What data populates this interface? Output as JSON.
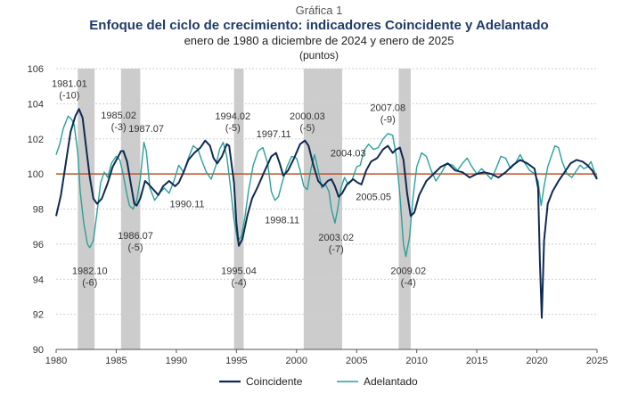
{
  "header": {
    "label": "Gráfica 1",
    "title": "Enfoque del ciclo de crecimiento: indicadores Coincidente y Adelantado",
    "subtitle": "enero de 1980 a diciembre de 2024 y enero de 2025",
    "unit": "(puntos)"
  },
  "colors": {
    "coincidente": "#0f2a52",
    "adelantado": "#2aa19a",
    "reference": "#c0502a",
    "recession": "#cccccc",
    "grid": "#cfcfcf"
  },
  "chart_data": {
    "type": "line",
    "xlim": [
      1980,
      2025
    ],
    "ylim": [
      90,
      106
    ],
    "x_ticks": [
      1980,
      1985,
      1990,
      1995,
      2000,
      2005,
      2010,
      2015,
      2020,
      2025
    ],
    "y_ticks": [
      90,
      92,
      94,
      96,
      98,
      100,
      102,
      104,
      106
    ],
    "x_tick_labels": [
      "1980",
      "1985",
      "1990",
      "1995",
      "2000",
      "2005",
      "2010",
      "2015",
      "2020",
      "2025"
    ],
    "y_tick_labels": [
      "90",
      "92",
      "94",
      "96",
      "98",
      "100",
      "102",
      "104",
      "106"
    ],
    "grid": "horizontal dotted",
    "reference_line": 100,
    "legend_position": "bottom",
    "shaded_periods": [
      [
        1981.8,
        1983.2
      ],
      [
        1985.4,
        1987.0
      ],
      [
        1994.8,
        1995.6
      ],
      [
        2000.6,
        2003.8
      ],
      [
        2008.5,
        2009.5
      ]
    ],
    "series": [
      {
        "name": "Coincidente",
        "points": [
          [
            1980.0,
            97.6
          ],
          [
            1980.4,
            98.8
          ],
          [
            1980.8,
            100.6
          ],
          [
            1981.2,
            102.4
          ],
          [
            1981.6,
            103.3
          ],
          [
            1981.9,
            103.7
          ],
          [
            1982.2,
            103.2
          ],
          [
            1982.5,
            101.5
          ],
          [
            1982.8,
            99.8
          ],
          [
            1983.1,
            98.6
          ],
          [
            1983.4,
            98.3
          ],
          [
            1983.8,
            98.6
          ],
          [
            1984.3,
            99.5
          ],
          [
            1984.7,
            100.4
          ],
          [
            1985.1,
            100.9
          ],
          [
            1985.4,
            101.3
          ],
          [
            1985.6,
            101.3
          ],
          [
            1985.9,
            100.7
          ],
          [
            1986.2,
            99.5
          ],
          [
            1986.5,
            98.3
          ],
          [
            1986.7,
            98.2
          ],
          [
            1987.0,
            98.6
          ],
          [
            1987.4,
            99.6
          ],
          [
            1987.7,
            99.4
          ],
          [
            1988.1,
            99.1
          ],
          [
            1988.5,
            98.8
          ],
          [
            1988.9,
            99.3
          ],
          [
            1989.4,
            99.6
          ],
          [
            1989.9,
            99.3
          ],
          [
            1990.2,
            99.5
          ],
          [
            1990.6,
            100.1
          ],
          [
            1991.0,
            100.8
          ],
          [
            1991.5,
            101.2
          ],
          [
            1992.0,
            101.5
          ],
          [
            1992.4,
            101.9
          ],
          [
            1992.8,
            101.6
          ],
          [
            1993.1,
            100.9
          ],
          [
            1993.4,
            100.6
          ],
          [
            1993.8,
            101.0
          ],
          [
            1994.2,
            101.7
          ],
          [
            1994.4,
            101.6
          ],
          [
            1994.8,
            99.5
          ],
          [
            1995.0,
            97.2
          ],
          [
            1995.2,
            95.9
          ],
          [
            1995.5,
            96.3
          ],
          [
            1995.9,
            97.6
          ],
          [
            1996.3,
            98.6
          ],
          [
            1996.8,
            99.3
          ],
          [
            1997.3,
            100.1
          ],
          [
            1997.9,
            101.0
          ],
          [
            1998.3,
            101.2
          ],
          [
            1998.6,
            100.6
          ],
          [
            1998.9,
            99.9
          ],
          [
            1999.3,
            100.2
          ],
          [
            1999.8,
            100.9
          ],
          [
            2000.3,
            101.7
          ],
          [
            2000.7,
            101.9
          ],
          [
            2001.0,
            101.6
          ],
          [
            2001.4,
            100.5
          ],
          [
            2001.8,
            99.6
          ],
          [
            2002.2,
            99.3
          ],
          [
            2002.6,
            99.6
          ],
          [
            2002.9,
            99.7
          ],
          [
            2003.2,
            99.3
          ],
          [
            2003.5,
            98.7
          ],
          [
            2003.8,
            98.9
          ],
          [
            2004.2,
            99.4
          ],
          [
            2004.7,
            99.7
          ],
          [
            2005.1,
            99.5
          ],
          [
            2005.4,
            99.4
          ],
          [
            2005.8,
            100.2
          ],
          [
            2006.2,
            100.7
          ],
          [
            2006.7,
            100.9
          ],
          [
            2007.2,
            101.4
          ],
          [
            2007.6,
            101.6
          ],
          [
            2008.0,
            101.2
          ],
          [
            2008.3,
            101.4
          ],
          [
            2008.6,
            101.5
          ],
          [
            2008.9,
            100.8
          ],
          [
            2009.2,
            98.9
          ],
          [
            2009.5,
            97.6
          ],
          [
            2009.8,
            97.8
          ],
          [
            2010.2,
            98.8
          ],
          [
            2010.8,
            99.6
          ],
          [
            2011.4,
            100.0
          ],
          [
            2012.0,
            100.4
          ],
          [
            2012.6,
            100.6
          ],
          [
            2013.2,
            100.2
          ],
          [
            2013.8,
            100.1
          ],
          [
            2014.4,
            99.8
          ],
          [
            2015.0,
            100.0
          ],
          [
            2015.6,
            100.1
          ],
          [
            2016.2,
            100.0
          ],
          [
            2016.8,
            99.8
          ],
          [
            2017.4,
            100.1
          ],
          [
            2018.0,
            100.5
          ],
          [
            2018.6,
            100.8
          ],
          [
            2019.2,
            100.6
          ],
          [
            2019.8,
            100.3
          ],
          [
            2020.1,
            99.2
          ],
          [
            2020.25,
            95.0
          ],
          [
            2020.4,
            91.8
          ],
          [
            2020.6,
            96.2
          ],
          [
            2020.9,
            98.3
          ],
          [
            2021.3,
            99.0
          ],
          [
            2021.8,
            99.6
          ],
          [
            2022.3,
            100.1
          ],
          [
            2022.8,
            100.6
          ],
          [
            2023.3,
            100.8
          ],
          [
            2023.8,
            100.7
          ],
          [
            2024.2,
            100.5
          ],
          [
            2024.6,
            100.2
          ],
          [
            2025.0,
            99.7
          ]
        ]
      },
      {
        "name": "Adelantado",
        "points": [
          [
            1980.0,
            101.1
          ],
          [
            1980.3,
            101.7
          ],
          [
            1980.6,
            102.6
          ],
          [
            1981.0,
            103.3
          ],
          [
            1981.3,
            103.1
          ],
          [
            1981.5,
            102.8
          ],
          [
            1981.8,
            101.2
          ],
          [
            1982.0,
            99.0
          ],
          [
            1982.3,
            97.2
          ],
          [
            1982.6,
            96.0
          ],
          [
            1982.8,
            95.8
          ],
          [
            1983.1,
            96.2
          ],
          [
            1983.4,
            97.8
          ],
          [
            1983.7,
            99.5
          ],
          [
            1984.0,
            100.1
          ],
          [
            1984.3,
            99.8
          ],
          [
            1984.6,
            100.6
          ],
          [
            1985.0,
            101.0
          ],
          [
            1985.3,
            100.8
          ],
          [
            1985.6,
            99.9
          ],
          [
            1985.9,
            98.8
          ],
          [
            1986.1,
            98.2
          ],
          [
            1986.4,
            98.0
          ],
          [
            1986.7,
            98.5
          ],
          [
            1987.0,
            99.7
          ],
          [
            1987.3,
            101.8
          ],
          [
            1987.5,
            101.3
          ],
          [
            1987.8,
            99.2
          ],
          [
            1988.2,
            98.5
          ],
          [
            1988.6,
            98.9
          ],
          [
            1989.0,
            99.2
          ],
          [
            1989.4,
            98.9
          ],
          [
            1989.8,
            99.6
          ],
          [
            1990.2,
            100.5
          ],
          [
            1990.6,
            100.1
          ],
          [
            1991.0,
            100.9
          ],
          [
            1991.4,
            101.6
          ],
          [
            1991.8,
            101.4
          ],
          [
            1992.1,
            100.8
          ],
          [
            1992.5,
            100.1
          ],
          [
            1992.9,
            99.7
          ],
          [
            1993.3,
            100.5
          ],
          [
            1993.6,
            101.4
          ],
          [
            1993.9,
            101.8
          ],
          [
            1994.2,
            101.0
          ],
          [
            1994.5,
            99.3
          ],
          [
            1994.8,
            97.4
          ],
          [
            1995.1,
            96.2
          ],
          [
            1995.4,
            96.4
          ],
          [
            1995.7,
            97.5
          ],
          [
            1996.0,
            99.0
          ],
          [
            1996.4,
            100.5
          ],
          [
            1996.8,
            101.3
          ],
          [
            1997.2,
            101.5
          ],
          [
            1997.6,
            100.6
          ],
          [
            1997.9,
            99.0
          ],
          [
            1998.2,
            98.5
          ],
          [
            1998.5,
            98.7
          ],
          [
            1998.8,
            99.5
          ],
          [
            1999.2,
            100.4
          ],
          [
            1999.6,
            101.0
          ],
          [
            2000.0,
            100.9
          ],
          [
            2000.3,
            100.2
          ],
          [
            2000.6,
            99.3
          ],
          [
            2000.9,
            99.1
          ],
          [
            2001.2,
            100.3
          ],
          [
            2001.5,
            101.1
          ],
          [
            2001.8,
            100.2
          ],
          [
            2002.1,
            99.2
          ],
          [
            2002.4,
            99.4
          ],
          [
            2002.7,
            99.0
          ],
          [
            2002.9,
            98.0
          ],
          [
            2003.2,
            97.2
          ],
          [
            2003.4,
            97.9
          ],
          [
            2003.7,
            99.2
          ],
          [
            2004.0,
            99.8
          ],
          [
            2004.3,
            99.4
          ],
          [
            2004.6,
            99.6
          ],
          [
            2005.0,
            100.4
          ],
          [
            2005.3,
            100.5
          ],
          [
            2005.6,
            101.3
          ],
          [
            2006.0,
            101.7
          ],
          [
            2006.4,
            101.4
          ],
          [
            2006.8,
            101.5
          ],
          [
            2007.2,
            102.0
          ],
          [
            2007.6,
            102.3
          ],
          [
            2008.0,
            102.2
          ],
          [
            2008.3,
            101.0
          ],
          [
            2008.6,
            98.8
          ],
          [
            2008.9,
            96.0
          ],
          [
            2009.1,
            95.3
          ],
          [
            2009.4,
            96.4
          ],
          [
            2009.7,
            98.7
          ],
          [
            2010.0,
            100.4
          ],
          [
            2010.4,
            101.2
          ],
          [
            2010.8,
            101.0
          ],
          [
            2011.2,
            100.2
          ],
          [
            2011.6,
            99.6
          ],
          [
            2012.0,
            100.0
          ],
          [
            2012.5,
            100.6
          ],
          [
            2013.0,
            100.5
          ],
          [
            2013.4,
            100.2
          ],
          [
            2013.8,
            100.6
          ],
          [
            2014.2,
            100.9
          ],
          [
            2014.6,
            100.4
          ],
          [
            2015.0,
            100.0
          ],
          [
            2015.4,
            100.3
          ],
          [
            2015.8,
            100.0
          ],
          [
            2016.2,
            99.7
          ],
          [
            2016.6,
            100.3
          ],
          [
            2017.0,
            101.0
          ],
          [
            2017.4,
            100.9
          ],
          [
            2017.8,
            100.3
          ],
          [
            2018.2,
            100.6
          ],
          [
            2018.6,
            101.1
          ],
          [
            2019.0,
            100.6
          ],
          [
            2019.4,
            100.2
          ],
          [
            2019.8,
            100.0
          ],
          [
            2020.1,
            99.6
          ],
          [
            2020.35,
            98.2
          ],
          [
            2020.6,
            99.3
          ],
          [
            2020.9,
            100.4
          ],
          [
            2021.2,
            101.0
          ],
          [
            2021.5,
            101.6
          ],
          [
            2021.8,
            101.5
          ],
          [
            2022.1,
            100.7
          ],
          [
            2022.5,
            100.0
          ],
          [
            2022.9,
            99.8
          ],
          [
            2023.3,
            100.2
          ],
          [
            2023.6,
            100.5
          ],
          [
            2023.9,
            100.3
          ],
          [
            2024.2,
            100.4
          ],
          [
            2024.5,
            100.7
          ],
          [
            2024.8,
            100.1
          ],
          [
            2025.0,
            99.8
          ]
        ]
      }
    ],
    "annotations": [
      {
        "text": "1981.01",
        "sub": "(-10)",
        "x": 1981.1,
        "y": 104.95
      },
      {
        "text": "1985.02",
        "sub": "(-3)",
        "x": 1985.2,
        "y": 103.15
      },
      {
        "text": "1987.07",
        "sub": "",
        "x": 1987.5,
        "y": 102.4
      },
      {
        "text": "1986.07",
        "sub": "(-5)",
        "x": 1986.6,
        "y": 96.3
      },
      {
        "text": "1982.10",
        "sub": "(-6)",
        "x": 1982.8,
        "y": 94.3
      },
      {
        "text": "1990.11",
        "sub": "",
        "x": 1990.9,
        "y": 98.1
      },
      {
        "text": "1994.02",
        "sub": "(-5)",
        "x": 1994.7,
        "y": 103.1
      },
      {
        "text": "1997.11",
        "sub": "",
        "x": 1998.1,
        "y": 102.1
      },
      {
        "text": "1995.04",
        "sub": "(-4)",
        "x": 1995.2,
        "y": 94.3
      },
      {
        "text": "2000.03",
        "sub": "(-5)",
        "x": 2000.9,
        "y": 103.1
      },
      {
        "text": "1998.11",
        "sub": "",
        "x": 1998.8,
        "y": 97.2
      },
      {
        "text": "2004.03",
        "sub": "",
        "x": 2004.3,
        "y": 101.0
      },
      {
        "text": "2005.05",
        "sub": "",
        "x": 2006.4,
        "y": 98.5
      },
      {
        "text": "2003.02",
        "sub": "(-7)",
        "x": 2003.3,
        "y": 96.2
      },
      {
        "text": "2007.08",
        "sub": "(-9)",
        "x": 2007.6,
        "y": 103.6
      },
      {
        "text": "2009.02",
        "sub": "(-4)",
        "x": 2009.3,
        "y": 94.3
      }
    ]
  },
  "legend": {
    "items": [
      "Coincidente",
      "Adelantado"
    ]
  }
}
